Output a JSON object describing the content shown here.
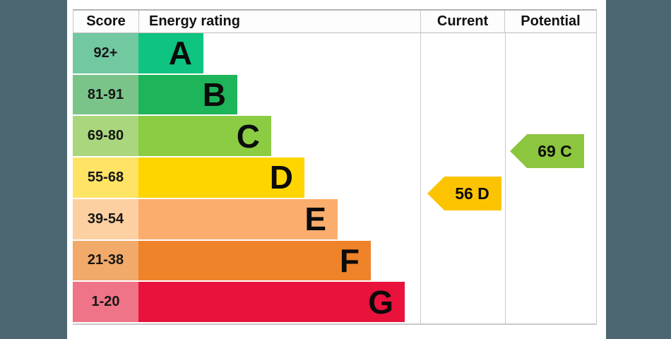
{
  "page": {
    "background_color": "#4c6771",
    "panel_color": "#ffffff"
  },
  "chart": {
    "headers": {
      "score": "Score",
      "energy_rating": "Energy rating",
      "current": "Current",
      "potential": "Potential"
    },
    "rows": [
      {
        "score": "92+",
        "letter": "A",
        "band_color": "#0ec480",
        "score_cell_color": "#72c8a1"
      },
      {
        "score": "81-91",
        "letter": "B",
        "band_color": "#1eb45a",
        "score_cell_color": "#7ac48a"
      },
      {
        "score": "69-80",
        "letter": "C",
        "band_color": "#8ccc43",
        "score_cell_color": "#aad77e"
      },
      {
        "score": "55-68",
        "letter": "D",
        "band_color": "#ffd500",
        "score_cell_color": "#ffe365"
      },
      {
        "score": "39-54",
        "letter": "E",
        "band_color": "#fbad6e",
        "score_cell_color": "#fdd0a1"
      },
      {
        "score": "21-38",
        "letter": "F",
        "band_color": "#ee8329",
        "score_cell_color": "#f1aa6a"
      },
      {
        "score": "1-20",
        "letter": "G",
        "band_color": "#e8123c",
        "score_cell_color": "#ef7488"
      }
    ],
    "current": {
      "label": "56 D",
      "value": 56,
      "band": "D",
      "arrow_color": "#fcc400"
    },
    "potential": {
      "label": "69 C",
      "value": 69,
      "band": "C",
      "arrow_color": "#8cc63f"
    }
  },
  "chart_data": {
    "type": "bar",
    "title": "Energy rating",
    "categories": [
      "A",
      "B",
      "C",
      "D",
      "E",
      "F",
      "G"
    ],
    "score_ranges": [
      "92+",
      "81-91",
      "69-80",
      "55-68",
      "39-54",
      "21-38",
      "1-20"
    ],
    "bar_relative_lengths": [
      0.23,
      0.35,
      0.47,
      0.59,
      0.71,
      0.82,
      0.95
    ],
    "band_colors": [
      "#0ec480",
      "#1eb45a",
      "#8ccc43",
      "#ffd500",
      "#fbad6e",
      "#ee8329",
      "#e8123c"
    ],
    "columns": [
      "Score",
      "Energy rating",
      "Current",
      "Potential"
    ],
    "current_rating": {
      "score": 56,
      "band": "D"
    },
    "potential_rating": {
      "score": 69,
      "band": "C"
    },
    "legend_position": "none",
    "grid": false
  }
}
